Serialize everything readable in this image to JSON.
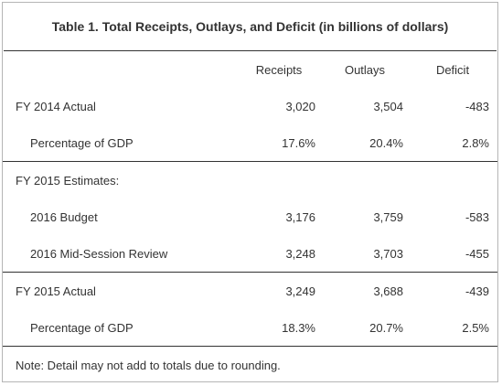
{
  "table": {
    "title": "Table 1. Total Receipts, Outlays, and Deficit (in billions of dollars)",
    "headers": {
      "receipts": "Receipts",
      "outlays": "Outlays",
      "deficit": "Deficit"
    },
    "rows": [
      {
        "label": "FY 2014 Actual",
        "receipts": "3,020",
        "outlays": "3,504",
        "deficit": "-483"
      },
      {
        "label": "Percentage of GDP",
        "receipts": "17.6%",
        "outlays": "20.4%",
        "deficit": "2.8%"
      },
      {
        "label": "FY 2015 Estimates:",
        "receipts": "",
        "outlays": "",
        "deficit": ""
      },
      {
        "label": "2016 Budget",
        "receipts": "3,176",
        "outlays": "3,759",
        "deficit": "-583"
      },
      {
        "label": "2016 Mid-Session Review",
        "receipts": "3,248",
        "outlays": "3,703",
        "deficit": "-455"
      },
      {
        "label": "FY 2015 Actual",
        "receipts": "3,249",
        "outlays": "3,688",
        "deficit": "-439"
      },
      {
        "label": "Percentage of GDP",
        "receipts": "18.3%",
        "outlays": "20.7%",
        "deficit": "2.5%"
      }
    ],
    "note": "Note: Detail may not add to totals due to rounding."
  }
}
